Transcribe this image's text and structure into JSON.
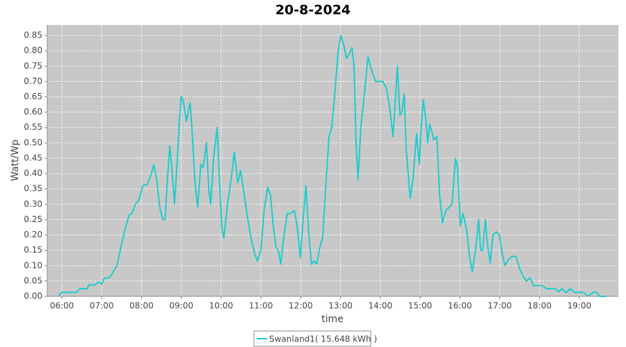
{
  "chart_data": {
    "type": "line",
    "title": "20-8-2024",
    "x_label": "time",
    "y_label": "Watt/Wp",
    "grid": true,
    "legend_position": "bottom",
    "xlim": [
      5.633,
      19.98
    ],
    "ylim": [
      0,
      0.884
    ],
    "xticks": [
      {
        "value": 6,
        "label": "06:00"
      },
      {
        "value": 7,
        "label": "07:00"
      },
      {
        "value": 8,
        "label": "08:00"
      },
      {
        "value": 9,
        "label": "09:00"
      },
      {
        "value": 10,
        "label": "10:00"
      },
      {
        "value": 11,
        "label": "11:00"
      },
      {
        "value": 12,
        "label": "12:00"
      },
      {
        "value": 13,
        "label": "13:00"
      },
      {
        "value": 14,
        "label": "14:00"
      },
      {
        "value": 15,
        "label": "15:00"
      },
      {
        "value": 16,
        "label": "16:00"
      },
      {
        "value": 17,
        "label": "17:00"
      },
      {
        "value": 18,
        "label": "18:00"
      },
      {
        "value": 19,
        "label": "19:00"
      }
    ],
    "yticks": [
      {
        "value": 0,
        "label": "0.00"
      },
      0.05,
      {
        "value": 0.1,
        "label": "0.10"
      },
      0.15,
      {
        "value": 0.2,
        "label": "0.20"
      },
      0.25,
      {
        "value": 0.3,
        "label": "0.30"
      },
      0.35,
      {
        "value": 0.4,
        "label": "0.40"
      },
      0.45,
      {
        "value": 0.5,
        "label": "0.50"
      },
      0.55,
      {
        "value": 0.6,
        "label": "0.60"
      },
      0.65,
      {
        "value": 0.7,
        "label": "0.70"
      },
      0.75,
      {
        "value": 0.8,
        "label": "0.80"
      },
      0.85
    ],
    "x": [
      5.91,
      6.0,
      6.19,
      6.37,
      6.45,
      6.63,
      6.68,
      6.82,
      6.93,
      7.0,
      7.07,
      7.19,
      7.29,
      7.38,
      7.5,
      7.59,
      7.69,
      7.76,
      7.85,
      7.94,
      8.03,
      8.15,
      8.25,
      8.31,
      8.38,
      8.46,
      8.53,
      8.59,
      8.66,
      8.71,
      8.76,
      8.83,
      8.9,
      8.95,
      9.0,
      9.06,
      9.13,
      9.22,
      9.27,
      9.34,
      9.41,
      9.49,
      9.55,
      9.63,
      9.69,
      9.74,
      9.81,
      9.9,
      9.95,
      10.02,
      10.07,
      10.16,
      10.25,
      10.33,
      10.42,
      10.49,
      10.58,
      10.66,
      10.75,
      10.84,
      10.91,
      11.0,
      11.08,
      11.17,
      11.24,
      11.31,
      11.38,
      11.45,
      11.5,
      11.57,
      11.66,
      11.75,
      11.84,
      11.91,
      11.99,
      12.06,
      12.13,
      12.2,
      12.27,
      12.34,
      12.4,
      12.48,
      12.55,
      12.64,
      12.71,
      12.78,
      12.85,
      12.94,
      13.01,
      13.08,
      13.15,
      13.22,
      13.29,
      13.34,
      13.39,
      13.44,
      13.51,
      13.6,
      13.69,
      13.77,
      13.88,
      13.97,
      14.06,
      14.15,
      14.23,
      14.32,
      14.43,
      14.49,
      14.54,
      14.6,
      14.65,
      14.7,
      14.75,
      14.82,
      14.91,
      14.98,
      15.03,
      15.08,
      15.14,
      15.19,
      15.24,
      15.29,
      15.34,
      15.42,
      15.49,
      15.56,
      15.65,
      15.73,
      15.8,
      15.89,
      15.94,
      16.01,
      16.08,
      16.17,
      16.24,
      16.31,
      16.4,
      16.47,
      16.52,
      16.57,
      16.64,
      16.69,
      16.76,
      16.83,
      16.92,
      16.99,
      17.06,
      17.13,
      17.22,
      17.31,
      17.41,
      17.5,
      17.59,
      17.67,
      17.76,
      17.85,
      17.95,
      18.06,
      18.18,
      18.39,
      18.48,
      18.56,
      18.67,
      18.77,
      18.88,
      19.12,
      19.21,
      19.35,
      19.44,
      19.51,
      19.68
    ],
    "series": [
      {
        "name": "Swanland1( 15.648 kWh )",
        "color": "#1ecccc",
        "values": [
          0,
          0.013,
          0.013,
          0.013,
          0.025,
          0.025,
          0.037,
          0.037,
          0.047,
          0.04,
          0.06,
          0.06,
          0.08,
          0.1,
          0.17,
          0.22,
          0.265,
          0.27,
          0.3,
          0.315,
          0.36,
          0.365,
          0.4,
          0.43,
          0.38,
          0.29,
          0.25,
          0.25,
          0.4,
          0.49,
          0.42,
          0.3,
          0.45,
          0.57,
          0.65,
          0.63,
          0.57,
          0.63,
          0.54,
          0.38,
          0.29,
          0.43,
          0.42,
          0.5,
          0.35,
          0.3,
          0.45,
          0.55,
          0.4,
          0.22,
          0.19,
          0.3,
          0.38,
          0.47,
          0.37,
          0.41,
          0.33,
          0.26,
          0.19,
          0.14,
          0.115,
          0.15,
          0.28,
          0.355,
          0.33,
          0.23,
          0.16,
          0.145,
          0.105,
          0.19,
          0.27,
          0.27,
          0.28,
          0.23,
          0.125,
          0.25,
          0.36,
          0.21,
          0.105,
          0.115,
          0.105,
          0.16,
          0.19,
          0.38,
          0.52,
          0.55,
          0.65,
          0.8,
          0.85,
          0.82,
          0.775,
          0.79,
          0.81,
          0.75,
          0.5,
          0.38,
          0.55,
          0.66,
          0.78,
          0.74,
          0.7,
          0.7,
          0.7,
          0.68,
          0.62,
          0.52,
          0.75,
          0.59,
          0.6,
          0.66,
          0.48,
          0.4,
          0.32,
          0.38,
          0.53,
          0.43,
          0.56,
          0.64,
          0.58,
          0.5,
          0.56,
          0.54,
          0.51,
          0.52,
          0.33,
          0.24,
          0.28,
          0.29,
          0.3,
          0.45,
          0.42,
          0.23,
          0.27,
          0.215,
          0.13,
          0.08,
          0.16,
          0.25,
          0.15,
          0.15,
          0.25,
          0.17,
          0.11,
          0.2,
          0.21,
          0.2,
          0.14,
          0.1,
          0.12,
          0.13,
          0.13,
          0.09,
          0.065,
          0.05,
          0.06,
          0.035,
          0.035,
          0.035,
          0.025,
          0.025,
          0.015,
          0.025,
          0.012,
          0.025,
          0.013,
          0.013,
          0,
          0.013,
          0.013,
          0,
          0
        ]
      }
    ]
  }
}
